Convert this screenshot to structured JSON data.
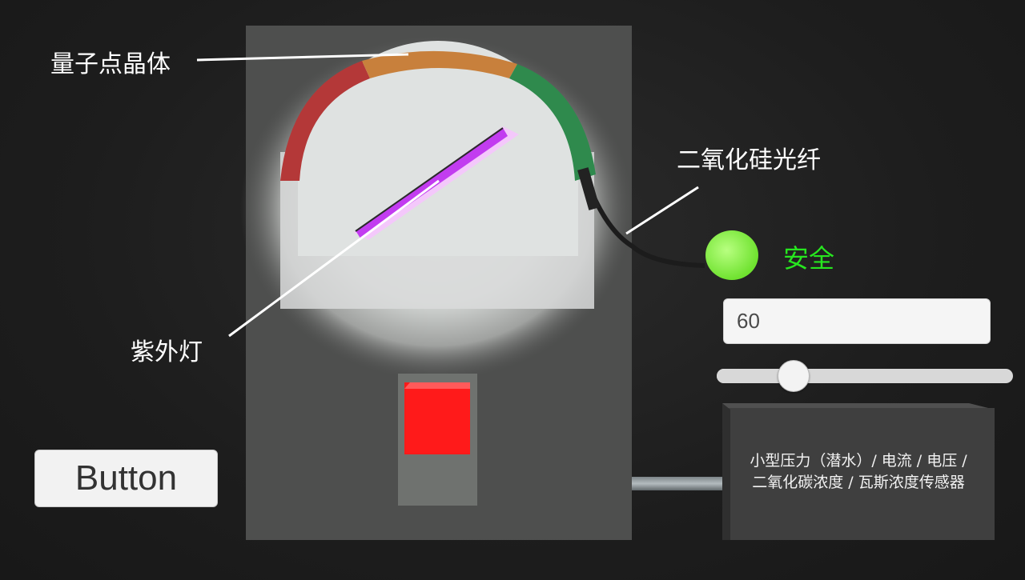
{
  "labels": {
    "quantum_dot": "量子点晶体",
    "fiber": "二氧化硅光纤",
    "uv_lamp": "紫外灯"
  },
  "status": {
    "text": "安全",
    "indicator_color": "#7ff23f",
    "text_color": "#27e61f"
  },
  "input": {
    "value": "60"
  },
  "slider": {
    "value_fraction": 0.23
  },
  "button": {
    "label": "Button"
  },
  "sensor": {
    "line1": "小型压力（潜水）/ 电流 / 电压 /",
    "line2": "二氧化碳浓度 / 瓦斯浓度传感器"
  },
  "colors": {
    "arc_red": "#b43838",
    "arc_orange": "#c8803c",
    "arc_green": "#2f8a4d",
    "uv_purple": "#c23cf0",
    "red_block": "#ff1a1a"
  },
  "icons": {
    "indicator": "status-light-icon"
  }
}
